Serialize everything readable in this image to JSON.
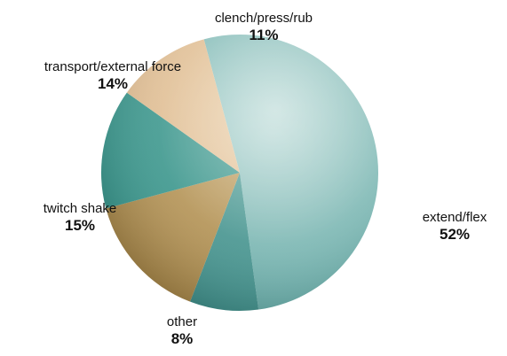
{
  "chart_data": {
    "type": "pie",
    "title": "",
    "slices": [
      {
        "label": "extend/flex",
        "value": 52,
        "value_label": "52%",
        "color": "#5fa7a3",
        "highlight": "#c6e0dd"
      },
      {
        "label": "other",
        "value": 8,
        "value_label": "8%",
        "color": "#3a8b86",
        "highlight": "#7db8b3"
      },
      {
        "label": "twitch shake",
        "value": 15,
        "value_label": "15%",
        "color": "#a58445",
        "highlight": "#d8bd8c"
      },
      {
        "label": "transport/external force",
        "value": 14,
        "value_label": "14%",
        "color": "#2f8f85",
        "highlight": "#6fb3ab"
      },
      {
        "label": "clench/press/rub",
        "value": 11,
        "value_label": "11%",
        "color": "#d8b285",
        "highlight": "#efd8b8"
      }
    ],
    "start_angle_deg": -15,
    "direction": "clockwise",
    "legend": "none"
  }
}
